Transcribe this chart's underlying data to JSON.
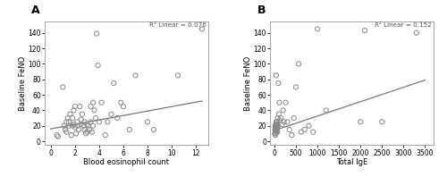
{
  "panel_A": {
    "label": "A",
    "xlabel": "Blood eosinophil count",
    "ylabel": "Baseline FeNO",
    "r2_label": "R² Linear = 0.076",
    "xlim": [
      -0.5,
      13
    ],
    "ylim": [
      -5,
      155
    ],
    "xticks": [
      0,
      2,
      4,
      6,
      8,
      10,
      12
    ],
    "yticks": [
      0,
      20,
      40,
      60,
      80,
      100,
      120,
      140
    ],
    "scatter_x": [
      0.5,
      0.6,
      1.0,
      1.1,
      1.2,
      1.3,
      1.3,
      1.4,
      1.5,
      1.5,
      1.6,
      1.7,
      1.8,
      1.8,
      1.9,
      1.9,
      2.0,
      2.0,
      2.1,
      2.2,
      2.2,
      2.3,
      2.4,
      2.5,
      2.5,
      2.6,
      2.7,
      2.8,
      2.8,
      2.9,
      3.0,
      3.0,
      3.1,
      3.2,
      3.3,
      3.3,
      3.4,
      3.5,
      3.5,
      3.6,
      3.7,
      3.8,
      3.9,
      4.0,
      4.2,
      4.5,
      4.7,
      5.0,
      5.2,
      5.5,
      5.8,
      6.0,
      6.5,
      7.0,
      8.0,
      8.5,
      10.5,
      12.5
    ],
    "scatter_y": [
      8,
      6,
      70,
      20,
      15,
      25,
      12,
      30,
      20,
      25,
      35,
      8,
      20,
      30,
      22,
      40,
      18,
      45,
      10,
      25,
      20,
      15,
      45,
      28,
      22,
      35,
      20,
      25,
      15,
      10,
      12,
      22,
      20,
      15,
      45,
      25,
      12,
      50,
      20,
      40,
      30,
      139,
      98,
      25,
      50,
      8,
      25,
      35,
      75,
      30,
      50,
      45,
      15,
      85,
      25,
      15,
      85,
      145
    ],
    "line_x": [
      0,
      12.5
    ],
    "line_y": [
      16,
      52
    ],
    "line_color": "#777777"
  },
  "panel_B": {
    "label": "B",
    "xlabel": "Total IgE",
    "ylabel": "Baseline FeNO",
    "r2_label": "R² Linear = 0.152",
    "xlim": [
      -100,
      3700
    ],
    "ylim": [
      -5,
      155
    ],
    "xticks": [
      0,
      500,
      1000,
      1500,
      2000,
      2500,
      3000,
      3500
    ],
    "yticks": [
      0,
      20,
      40,
      60,
      80,
      100,
      120,
      140
    ],
    "scatter_x": [
      5,
      10,
      15,
      18,
      20,
      22,
      25,
      28,
      30,
      32,
      35,
      38,
      40,
      42,
      45,
      48,
      50,
      52,
      55,
      58,
      60,
      65,
      70,
      75,
      80,
      90,
      100,
      110,
      120,
      150,
      180,
      200,
      220,
      260,
      300,
      350,
      400,
      450,
      500,
      560,
      620,
      700,
      800,
      900,
      1000,
      1200,
      2000,
      2100,
      2500,
      3300
    ],
    "scatter_y": [
      10,
      15,
      20,
      8,
      12,
      20,
      15,
      15,
      10,
      22,
      18,
      85,
      25,
      20,
      15,
      14,
      13,
      20,
      22,
      25,
      20,
      18,
      12,
      30,
      20,
      75,
      35,
      50,
      27,
      30,
      22,
      40,
      25,
      50,
      25,
      15,
      8,
      30,
      70,
      100,
      12,
      15,
      20,
      12,
      145,
      40,
      25,
      143,
      25,
      140
    ],
    "line_x": [
      0,
      3500
    ],
    "line_y": [
      14,
      79
    ],
    "line_color": "#777777"
  },
  "bg_color": "#ffffff",
  "plot_bg": "#ffffff",
  "scatter_color": "none",
  "scatter_edge": "#888888",
  "scatter_size": 14,
  "scatter_lw": 0.7,
  "font_size_label": 6.0,
  "font_size_tick": 5.5,
  "font_size_r2": 5.2,
  "font_size_panel": 9,
  "spine_color": "#aaaaaa",
  "spine_lw": 0.8
}
